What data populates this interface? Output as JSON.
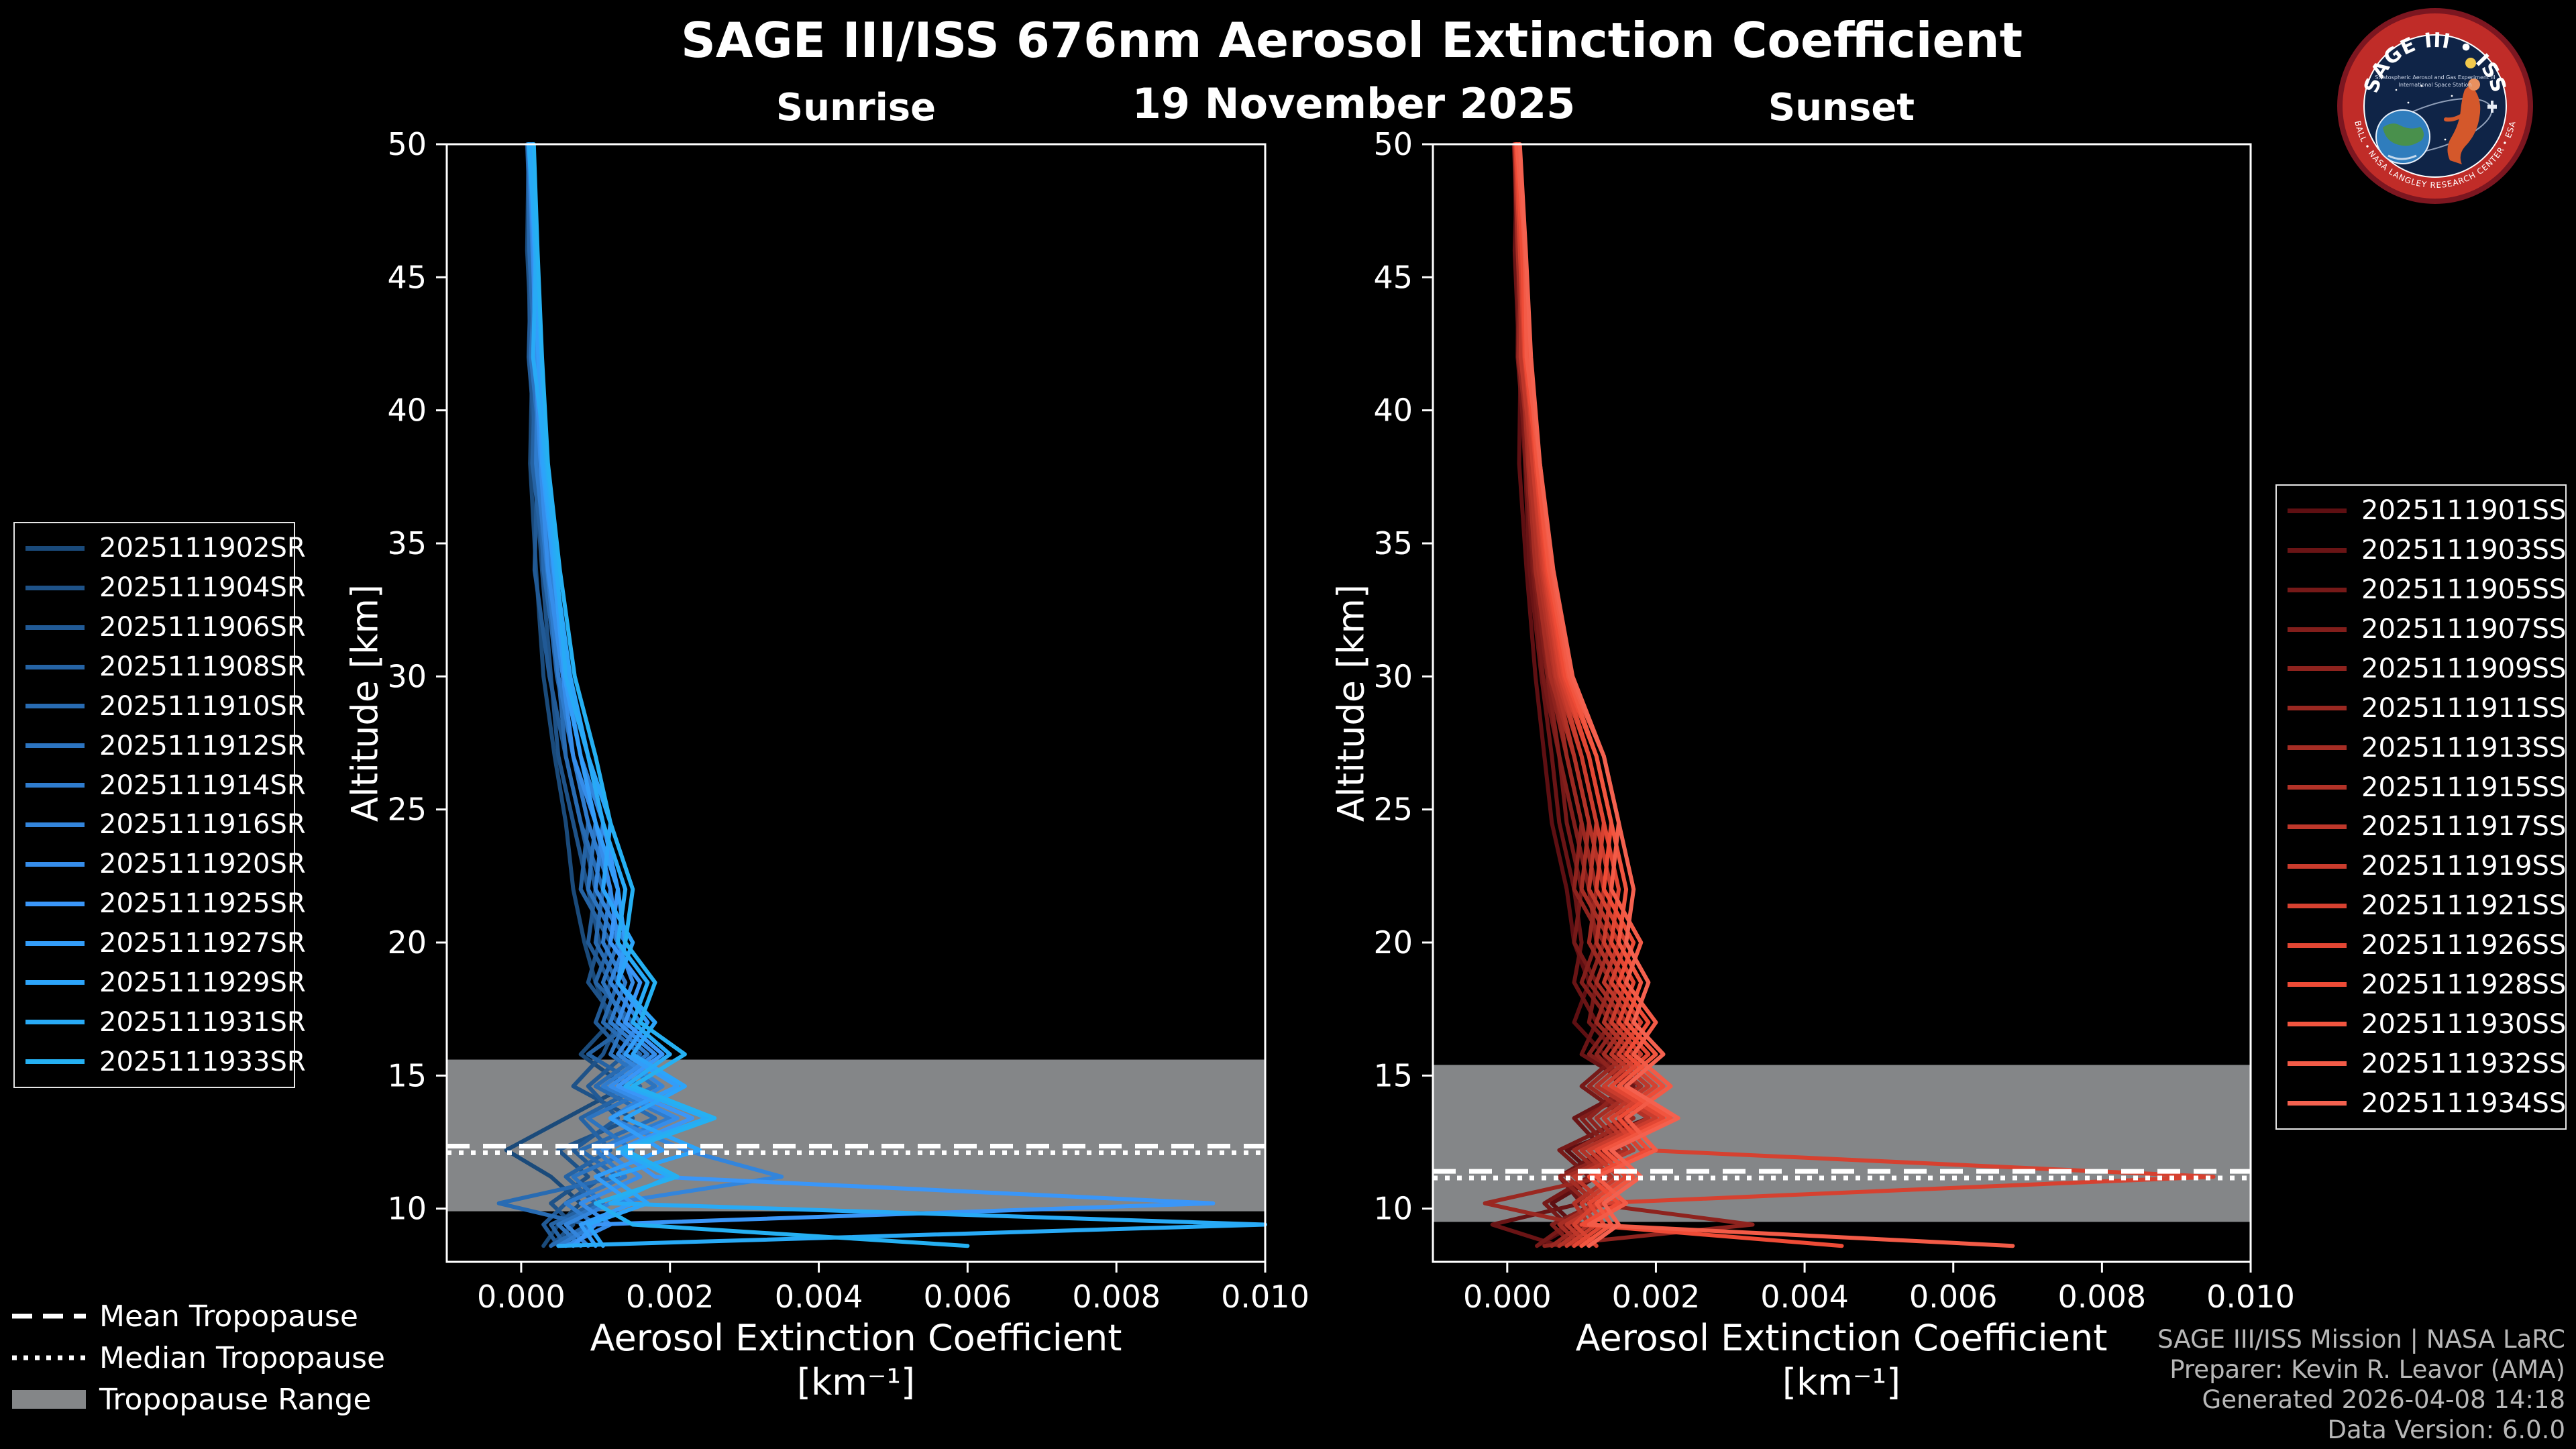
{
  "header": {
    "title": "SAGE III/ISS 676nm Aerosol Extinction Coefficient",
    "date": "19 November 2025"
  },
  "logo": {
    "title": "SAGE III • ISS",
    "sub1": "Stratospheric Aerosol and Gas Experiment III",
    "sub2": "International Space Station",
    "ring_text": "BALL • NASA LANGLEY RESEARCH CENTER • ESA"
  },
  "footer": {
    "lines": [
      "SAGE III/ISS Mission | NASA LaRC",
      "Preparer: Kevin R. Leavor (AMA)",
      "Generated 2026-04-08 14:18",
      "Data Version: 6.0.0"
    ]
  },
  "tropopause_legend": [
    {
      "label": "Mean Tropopause",
      "style": "dashed"
    },
    {
      "label": "Median Tropopause",
      "style": "dotted"
    },
    {
      "label": "Tropopause Range",
      "style": "band"
    }
  ],
  "colors": {
    "background": "#000000",
    "text": "#ffffff",
    "band": "#848688",
    "credit": "#b8b8b8",
    "axis": "#ffffff"
  },
  "chart_data": [
    {
      "type": "line",
      "title": "Sunrise",
      "xlabel": "Aerosol Extinction Coefficient",
      "xlabel2": "[km⁻¹]",
      "ylabel": "Altitude [km]",
      "xlim": [
        -0.001,
        0.01
      ],
      "ylim": [
        8,
        50
      ],
      "x_ticks": [
        0.0,
        0.002,
        0.004,
        0.006,
        0.008,
        0.01
      ],
      "x_tick_labels": [
        "0.000",
        "0.002",
        "0.004",
        "0.006",
        "0.008",
        "0.010"
      ],
      "y_ticks": [
        10,
        15,
        20,
        25,
        30,
        35,
        40,
        45,
        50
      ],
      "grid": false,
      "legend_position": "left-outside",
      "tropopause": {
        "mean": 12.35,
        "median": 12.1,
        "range": [
          9.9,
          15.6
        ]
      },
      "altitudes": [
        50,
        46,
        42,
        38,
        34,
        30,
        27,
        24.5,
        22,
        20,
        18.5,
        17,
        15.8,
        14.6,
        13.4,
        12.2,
        11.2,
        10.2,
        9.4,
        8.6
      ],
      "series": [
        {
          "name": "2025111902SR",
          "color": "#1a4a7a",
          "values": [
            0.0001,
            8e-05,
            0.00015,
            0.00012,
            0.0002,
            0.0003,
            0.00045,
            0.0006,
            0.0007,
            0.00085,
            0.001,
            0.0012,
            0.0008,
            0.0014,
            0.0006,
            -0.0002,
            0.0004,
            0.0008,
            0.0005,
            0.0003
          ]
        },
        {
          "name": "2025111904SR",
          "color": "#1e5288",
          "values": [
            0.00015,
            0.0001,
            0.00012,
            0.00018,
            0.00028,
            0.0004,
            0.0005,
            0.0007,
            0.0009,
            0.00105,
            0.0009,
            0.0013,
            0.0011,
            0.0007,
            0.0015,
            0.0005,
            0.0009,
            0.0004,
            0.0007,
            0.0004
          ]
        },
        {
          "name": "2025111906SR",
          "color": "#215a96",
          "values": [
            8e-05,
            0.00014,
            0.0001,
            0.00022,
            0.00018,
            0.00038,
            0.0006,
            0.0008,
            0.001,
            0.0009,
            0.0012,
            0.001,
            0.0014,
            0.0009,
            0.0013,
            0.0007,
            0.0011,
            0.0006,
            0.0003,
            0.0005
          ]
        },
        {
          "name": "2025111908SR",
          "color": "#2563a4",
          "values": [
            0.00012,
            0.00016,
            0.0002,
            0.00015,
            0.00032,
            0.00048,
            0.0007,
            0.0009,
            0.0008,
            0.0012,
            0.001,
            0.0015,
            0.0009,
            0.0016,
            0.0008,
            0.0012,
            0.0006,
            0.001,
            0.0004,
            0.0006
          ]
        },
        {
          "name": "2025111910SR",
          "color": "#286bb2",
          "values": [
            9e-05,
            0.00011,
            0.00018,
            0.00025,
            0.0003,
            0.0005,
            0.0006,
            0.0008,
            0.0011,
            0.001,
            0.0013,
            0.0011,
            0.0016,
            0.001,
            0.0018,
            0.0008,
            0.0013,
            -0.0003,
            0.0009,
            0.0004
          ]
        },
        {
          "name": "2025111912SR",
          "color": "#2c74c0",
          "values": [
            0.00014,
            0.0002,
            0.00013,
            0.00028,
            0.00038,
            0.00058,
            0.0008,
            0.001,
            0.0009,
            0.0013,
            0.0011,
            0.0014,
            0.0012,
            0.0018,
            0.0009,
            0.0015,
            0.0007,
            0.0011,
            0.0005,
            0.0008
          ]
        },
        {
          "name": "2025111914SR",
          "color": "#2f7cce",
          "values": [
            0.0001,
            0.00015,
            0.00022,
            0.0002,
            0.00035,
            0.0005,
            0.0007,
            0.0009,
            0.0012,
            0.0011,
            0.0014,
            0.0012,
            0.0017,
            0.0011,
            0.002,
            0.001,
            0.0014,
            0.0006,
            0.001,
            0.0005
          ]
        },
        {
          "name": "2025111916SR",
          "color": "#3385dc",
          "values": [
            0.00013,
            0.00017,
            0.00024,
            0.00032,
            0.00042,
            0.0006,
            0.0008,
            0.0011,
            0.001,
            0.0014,
            0.0012,
            0.0016,
            0.0013,
            0.0019,
            0.0012,
            0.0022,
            0.0035,
            0.0012,
            0.0006,
            0.0009
          ]
        },
        {
          "name": "2025111920SR",
          "color": "#368dea",
          "values": [
            0.00011,
            0.00016,
            0.00019,
            0.00026,
            0.00036,
            0.00056,
            0.0007,
            0.001,
            0.0012,
            0.0013,
            0.0015,
            0.0013,
            0.0018,
            0.0012,
            0.0021,
            0.0011,
            0.0016,
            0.0008,
            0.0012,
            0.0006
          ]
        },
        {
          "name": "2025111925SR",
          "color": "#3a96f8",
          "values": [
            0.00016,
            0.00021,
            0.00025,
            0.00033,
            0.00045,
            0.00065,
            0.0009,
            0.0011,
            0.0013,
            0.0012,
            0.0016,
            0.0014,
            0.0019,
            0.0013,
            0.0023,
            0.0013,
            0.0018,
            0.0093,
            0.001,
            0.0007
          ]
        },
        {
          "name": "2025111927SR",
          "color": "#339df9",
          "values": [
            0.00012,
            0.00018,
            0.00023,
            0.00028,
            0.00044,
            0.00058,
            0.0008,
            0.001,
            0.0013,
            0.0014,
            0.0013,
            0.0017,
            0.0014,
            0.0021,
            0.0012,
            0.0019,
            0.001,
            0.0015,
            0.0008,
            0.001
          ]
        },
        {
          "name": "2025111929SR",
          "color": "#2ca4fa",
          "values": [
            0.00015,
            0.00019,
            0.00027,
            0.0003,
            0.00046,
            0.00066,
            0.0009,
            0.0012,
            0.0011,
            0.0015,
            0.0013,
            0.0018,
            0.0015,
            0.0022,
            0.0014,
            0.0024,
            0.0012,
            0.0017,
            0.0009,
            0.0011
          ]
        },
        {
          "name": "2025111931SR",
          "color": "#28aaf6",
          "values": [
            0.0001,
            0.0002,
            0.00016,
            0.00034,
            0.00048,
            0.0006,
            0.0009,
            0.0011,
            0.0014,
            0.0013,
            0.0017,
            0.0015,
            0.002,
            0.0014,
            0.0025,
            0.0013,
            0.002,
            0.0012,
            0.01,
            0.0005
          ]
        },
        {
          "name": "2025111933SR",
          "color": "#25b0f2",
          "values": [
            0.00017,
            0.00022,
            0.00028,
            0.00036,
            0.00052,
            0.00072,
            0.001,
            0.0012,
            0.0015,
            0.0014,
            0.0018,
            0.0016,
            0.0022,
            0.0015,
            0.0026,
            0.0014,
            0.0021,
            0.001,
            0.0015,
            0.006
          ]
        }
      ]
    },
    {
      "type": "line",
      "title": "Sunset",
      "xlabel": "Aerosol Extinction Coefficient",
      "xlabel2": "[km⁻¹]",
      "ylabel": "Altitude [km]",
      "xlim": [
        -0.001,
        0.01
      ],
      "ylim": [
        8,
        50
      ],
      "x_ticks": [
        0.0,
        0.002,
        0.004,
        0.006,
        0.008,
        0.01
      ],
      "x_tick_labels": [
        "0.000",
        "0.002",
        "0.004",
        "0.006",
        "0.008",
        "0.010"
      ],
      "y_ticks": [
        10,
        15,
        20,
        25,
        30,
        35,
        40,
        45,
        50
      ],
      "grid": false,
      "legend_position": "right-outside",
      "tropopause": {
        "mean": 11.4,
        "median": 11.15,
        "range": [
          9.5,
          15.4
        ]
      },
      "altitudes": [
        50,
        46,
        42,
        38,
        34,
        30,
        27,
        24.5,
        22,
        20,
        18.5,
        17,
        15.8,
        14.6,
        13.4,
        12.2,
        11.2,
        10.2,
        9.4,
        8.6
      ],
      "series": [
        {
          "name": "2025111901SS",
          "color": "#5e0f12",
          "values": [
            0.0001,
            0.00012,
            0.00018,
            0.00016,
            0.00026,
            0.00038,
            0.0005,
            0.0006,
            0.0008,
            0.0009,
            0.0011,
            0.0009,
            0.0013,
            0.0015,
            0.0019,
            0.0008,
            0.0012,
            0.0006,
            0.0009,
            0.0004
          ]
        },
        {
          "name": "2025111903SS",
          "color": "#6a1415",
          "values": [
            0.00014,
            0.0001,
            0.00016,
            0.00024,
            0.0003,
            0.00046,
            0.0006,
            0.0007,
            0.0009,
            0.001,
            0.0009,
            0.0012,
            0.001,
            0.0017,
            0.0009,
            0.0013,
            0.0007,
            0.001,
            -0.0002,
            0.0007
          ]
        },
        {
          "name": "2025111905SS",
          "color": "#761918",
          "values": [
            9e-05,
            0.00015,
            0.00014,
            0.00026,
            0.00034,
            0.00048,
            0.0007,
            0.0008,
            0.001,
            0.0009,
            0.0012,
            0.0011,
            0.0015,
            0.001,
            0.0016,
            0.0007,
            0.0011,
            0.0005,
            0.0008,
            0.0004
          ]
        },
        {
          "name": "2025111907SS",
          "color": "#821e1b",
          "values": [
            0.00013,
            0.00017,
            0.00021,
            0.00025,
            0.00036,
            0.00054,
            0.0007,
            0.0009,
            0.0011,
            0.0012,
            0.001,
            0.0014,
            0.0011,
            0.0018,
            0.001,
            0.0014,
            0.0008,
            0.0012,
            0.0006,
            0.0009
          ]
        },
        {
          "name": "2025111909SS",
          "color": "#8e231e",
          "values": [
            0.00011,
            0.00016,
            0.00022,
            0.0003,
            0.0004,
            0.00056,
            0.0008,
            0.001,
            0.0009,
            0.0013,
            0.0011,
            0.0015,
            0.0012,
            0.0016,
            0.0011,
            0.0015,
            0.0007,
            0.0011,
            0.0033,
            0.0005
          ]
        },
        {
          "name": "2025111911SS",
          "color": "#9a2821",
          "values": [
            0.00015,
            0.00019,
            0.00015,
            0.00032,
            0.00042,
            0.00062,
            0.0008,
            0.001,
            0.0012,
            0.0011,
            0.0014,
            0.0012,
            0.0016,
            0.0011,
            0.0017,
            0.0009,
            0.0013,
            -0.0003,
            0.001,
            0.0006
          ]
        },
        {
          "name": "2025111913SS",
          "color": "#a62d24",
          "values": [
            0.0001,
            0.00014,
            0.0002,
            0.00028,
            0.00038,
            0.00058,
            0.0009,
            0.0011,
            0.001,
            0.0014,
            0.0012,
            0.0016,
            0.0013,
            0.0018,
            0.0012,
            0.0016,
            0.0008,
            0.0012,
            0.0007,
            0.001
          ]
        },
        {
          "name": "2025111915SS",
          "color": "#b23227",
          "values": [
            0.00012,
            0.00018,
            0.00024,
            0.0003,
            0.00042,
            0.00064,
            0.0009,
            0.0011,
            0.0013,
            0.0012,
            0.0015,
            0.0013,
            0.0017,
            0.0012,
            0.0019,
            0.001,
            0.0014,
            0.0009,
            0.0011,
            0.0007
          ]
        },
        {
          "name": "2025111917SS",
          "color": "#be372a",
          "values": [
            0.00014,
            0.0002,
            0.00018,
            0.00034,
            0.00046,
            0.00066,
            0.001,
            0.0012,
            0.0011,
            0.0015,
            0.0013,
            0.0017,
            0.0014,
            0.0019,
            0.0013,
            0.0017,
            0.0009,
            0.0013,
            0.0008,
            0.0011
          ]
        },
        {
          "name": "2025111919SS",
          "color": "#ca3c2d",
          "values": [
            0.00016,
            0.00021,
            0.00026,
            0.00034,
            0.00048,
            0.0007,
            0.001,
            0.0012,
            0.0014,
            0.0013,
            0.0016,
            0.0014,
            0.0018,
            0.0013,
            0.002,
            0.0011,
            0.0015,
            0.001,
            0.0012,
            0.0008
          ]
        },
        {
          "name": "2025111921SS",
          "color": "#d64130",
          "values": [
            0.00011,
            0.00017,
            0.00023,
            0.00038,
            0.0005,
            0.00072,
            0.0011,
            0.0013,
            0.0012,
            0.0016,
            0.0014,
            0.0018,
            0.0015,
            0.002,
            0.0014,
            0.0018,
            0.0095,
            0.0012,
            0.0009,
            0.0012
          ]
        },
        {
          "name": "2025111926SS",
          "color": "#e24633",
          "values": [
            0.00015,
            0.00022,
            0.00028,
            0.00038,
            0.00052,
            0.00076,
            0.0011,
            0.0013,
            0.0015,
            0.0014,
            0.0017,
            0.0015,
            0.0019,
            0.0014,
            0.0021,
            0.0012,
            0.0016,
            0.0011,
            0.0013,
            0.0009
          ]
        },
        {
          "name": "2025111928SS",
          "color": "#ee4b36",
          "values": [
            0.00012,
            0.0002,
            0.00024,
            0.0004,
            0.00054,
            0.00078,
            0.0012,
            0.0014,
            0.0013,
            0.0017,
            0.0015,
            0.0019,
            0.0016,
            0.0021,
            0.0015,
            0.0019,
            0.0011,
            0.0015,
            0.001,
            0.0045
          ]
        },
        {
          "name": "2025111930SS",
          "color": "#f2553f",
          "values": [
            0.00016,
            0.00023,
            0.0003,
            0.0004,
            0.00056,
            0.00082,
            0.0012,
            0.0014,
            0.0016,
            0.0015,
            0.0018,
            0.0016,
            0.002,
            0.0015,
            0.0022,
            0.0013,
            0.0017,
            0.0012,
            0.0014,
            0.001
          ]
        },
        {
          "name": "2025111932SS",
          "color": "#f35b47",
          "values": [
            0.00013,
            0.00024,
            0.00026,
            0.00044,
            0.0006,
            0.00084,
            0.0013,
            0.0015,
            0.0014,
            0.0018,
            0.0016,
            0.002,
            0.0017,
            0.0022,
            0.0016,
            0.002,
            0.0012,
            0.0016,
            0.0011,
            0.0068
          ]
        },
        {
          "name": "2025111934SS",
          "color": "#f4614f",
          "values": [
            0.00017,
            0.00025,
            0.00032,
            0.00044,
            0.00062,
            0.00088,
            0.0013,
            0.0015,
            0.0017,
            0.0016,
            0.0019,
            0.0017,
            0.0021,
            0.0016,
            0.0023,
            0.0014,
            0.0018,
            0.0013,
            0.0015,
            0.0011
          ]
        }
      ]
    }
  ]
}
